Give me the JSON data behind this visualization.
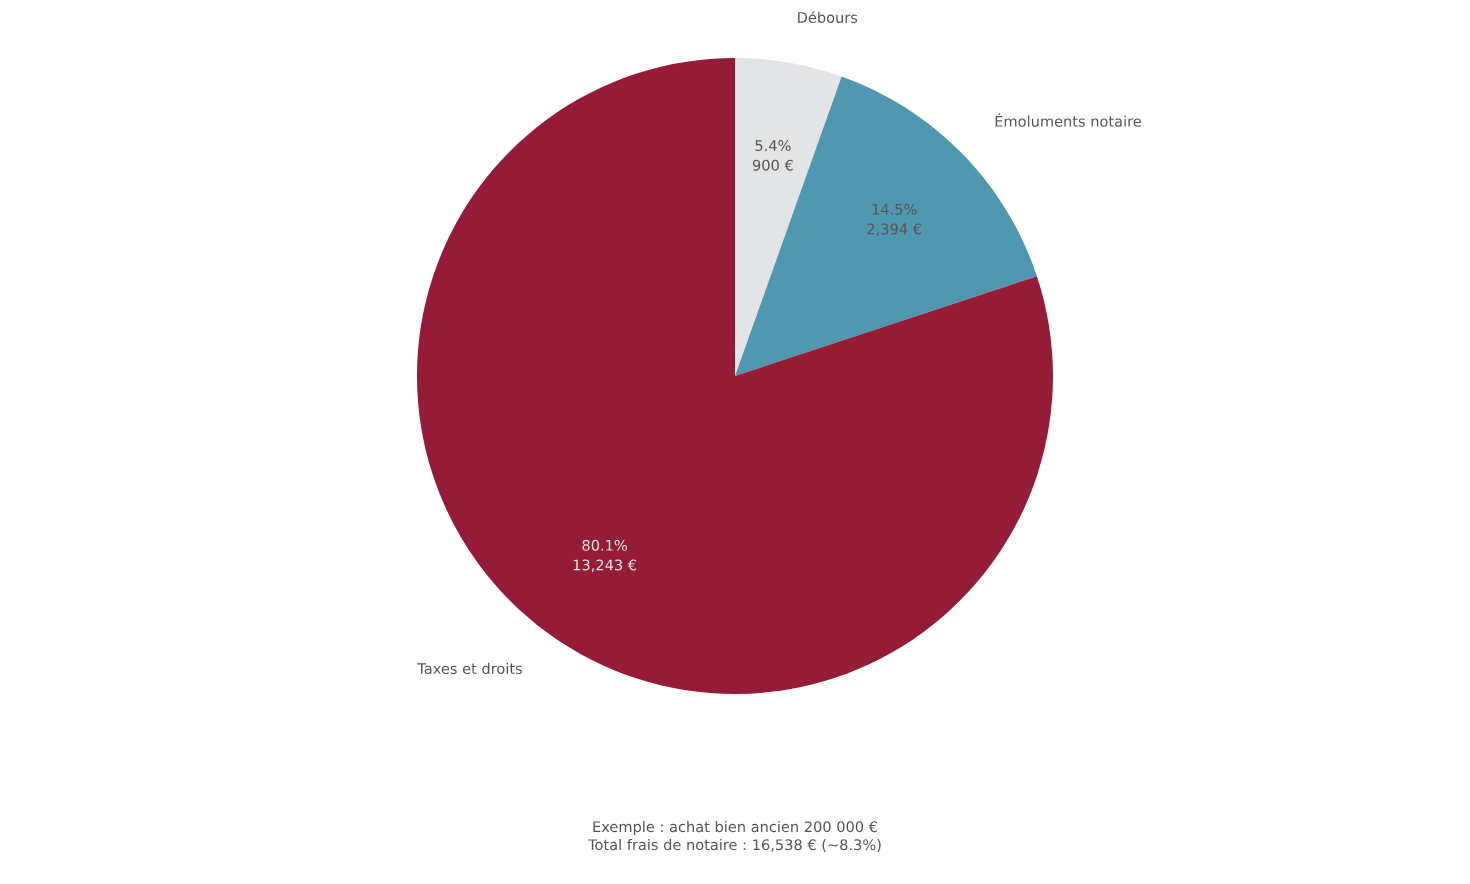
{
  "chart_data": {
    "type": "pie",
    "categories": [
      "Débours",
      "Émoluments notaire",
      "Taxes et droits"
    ],
    "values": [
      900,
      2394,
      13243
    ],
    "colors": [
      "#e3e4e6",
      "#5097b0",
      "#951c36"
    ],
    "value_labels": [
      "5.4%\n900 €",
      "14.5%\n2,394 €",
      "80.1%\n13,243 €"
    ],
    "annotations": [
      "Exemple : achat bien ancien 200 000 €",
      "Total frais de notaire : 16,538 € (~8.3%)"
    ]
  }
}
